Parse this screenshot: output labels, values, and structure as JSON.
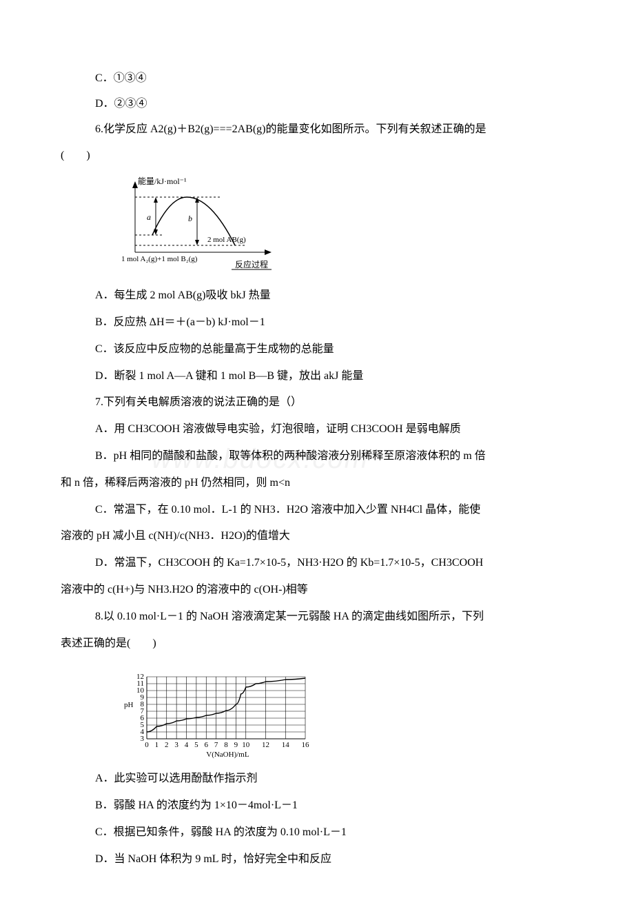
{
  "q5": {
    "optC": "C．①③④",
    "optD": "D．②③④"
  },
  "q6": {
    "stem1": "6.化学反应 A2(g)＋B2(g)===2AB(g)的能量变化如图所示。下列有关叙述正确的是",
    "stem2": "(　　)",
    "chart": {
      "y_label": "能量/kJ·mol⁻¹",
      "x_label": "反应过程",
      "left_label": "1 mol A₂(g)+1 mol B₂(g)",
      "right_label": "2 mol AB(g)",
      "a_label": "a",
      "b_label": "b"
    },
    "optA": "A．每生成 2 mol AB(g)吸收 bkJ 热量",
    "optB": "B．反应热 ΔH＝＋(a－b) kJ·mol－1",
    "optC": "C．该反应中反应物的总能量高于生成物的总能量",
    "optD": "D．断裂 1 mol A—A 键和 1 mol B—B 键，放出 akJ 能量"
  },
  "q7": {
    "stem": "7.下列有关电解质溶液的说法正确的是（）",
    "optA": "A．用 CH3COOH 溶液做导电实验，灯泡很暗，证明 CH3COOH 是弱电解质",
    "optB1": "B．pH 相同的醋酸和盐酸，取等体积的两种酸溶液分别稀释至原溶液体积的 m 倍",
    "optB2": "和 n 倍，稀释后两溶液的 pH 仍然相同，则 m<n",
    "optC1": "C．常温下，在 0.10 mol．L-1 的 NH3．H2O 溶液中加入少置 NH4Cl 晶体，能使",
    "optC2": "溶液的 pH 减小且 c(NH)/c(NH3．H2O)的值增大",
    "optD1": "D．常温下，CH3COOH 的 Ka=1.7×10-5，NH3·H2O 的 Kb=1.7×10-5，CH3COOH",
    "optD2": "溶液中的 c(H+)与 NH3.H2O 的溶液中的 c(OH-)相等"
  },
  "q8": {
    "stem1": "8.以 0.10 mol·L－1 的 NaOH 溶液滴定某一元弱酸 HA 的滴定曲线如图所示，下列",
    "stem2": "表述正确的是(　　)",
    "chart": {
      "y_label": "pH",
      "x_label": "V(NaOH)/mL",
      "y_ticks": [
        3,
        4,
        5,
        6,
        7,
        8,
        9,
        10,
        11,
        12
      ],
      "x_ticks": [
        0,
        1,
        2,
        3,
        4,
        5,
        6,
        7,
        8,
        9,
        10,
        12,
        14,
        16
      ],
      "curve_points": [
        [
          0,
          4
        ],
        [
          1,
          4.8
        ],
        [
          2,
          5.2
        ],
        [
          3,
          5.6
        ],
        [
          4,
          5.9
        ],
        [
          5,
          6.1
        ],
        [
          6,
          6.4
        ],
        [
          7,
          6.7
        ],
        [
          8,
          7.1
        ],
        [
          9,
          8.0
        ],
        [
          9.5,
          9.5
        ],
        [
          10,
          10.5
        ],
        [
          11,
          11.0
        ],
        [
          12,
          11.3
        ],
        [
          14,
          11.6
        ],
        [
          16,
          11.8
        ]
      ]
    },
    "optA": "A．此实验可以选用酚酞作指示剂",
    "optB": "B．弱酸 HA 的浓度约为 1×10－4mol·L－1",
    "optC": "C．根据已知条件，弱酸 HA 的浓度为 0.10 mol·L－1",
    "optD": "D．当 NaOH 体积为 9 mL 时，恰好完全中和反应"
  },
  "watermark": "www.bdocx.com"
}
